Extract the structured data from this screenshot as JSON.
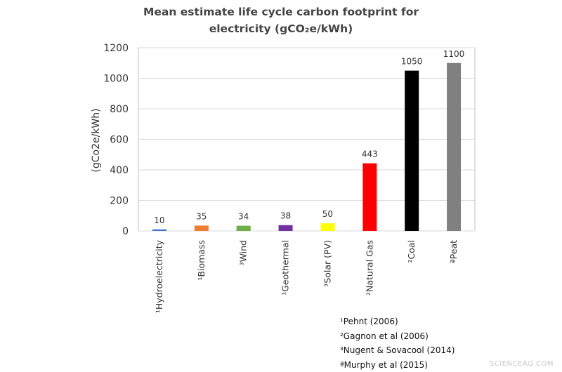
{
  "chart_data": {
    "type": "bar",
    "title": [
      "Mean estimate life cycle carbon footprint for",
      "electricity (gCO₂e/kWh)"
    ],
    "ylabel": "(gCo2e/kWh)",
    "ylim": [
      0,
      1200
    ],
    "yticks": [
      0,
      200,
      400,
      600,
      800,
      1000,
      1200
    ],
    "grid": true,
    "categories": [
      "¹Hydroelectricity",
      "¹Biomass",
      "³Wind",
      "¹Geothermal",
      "³Solar (PV)",
      "²Natural Gas",
      "²Coal",
      "ªPeat"
    ],
    "values": [
      10,
      35,
      34,
      38,
      50,
      443,
      1050,
      1100
    ],
    "data_labels": [
      "10",
      "35",
      "34",
      "38",
      "50",
      "443",
      "1050",
      "1100"
    ],
    "colors": [
      "#4472c4",
      "#ed7d31",
      "#70ad47",
      "#7030a0",
      "#ffff00",
      "#ff0000",
      "#000000",
      "#808080"
    ]
  },
  "references": [
    "¹Pehnt (2006)",
    "²Gagnon et al (2006)",
    "³Nugent & Sovacool (2014)",
    "ªMurphy et al (2015)"
  ],
  "watermark": "SCIENCEAQ.COM"
}
